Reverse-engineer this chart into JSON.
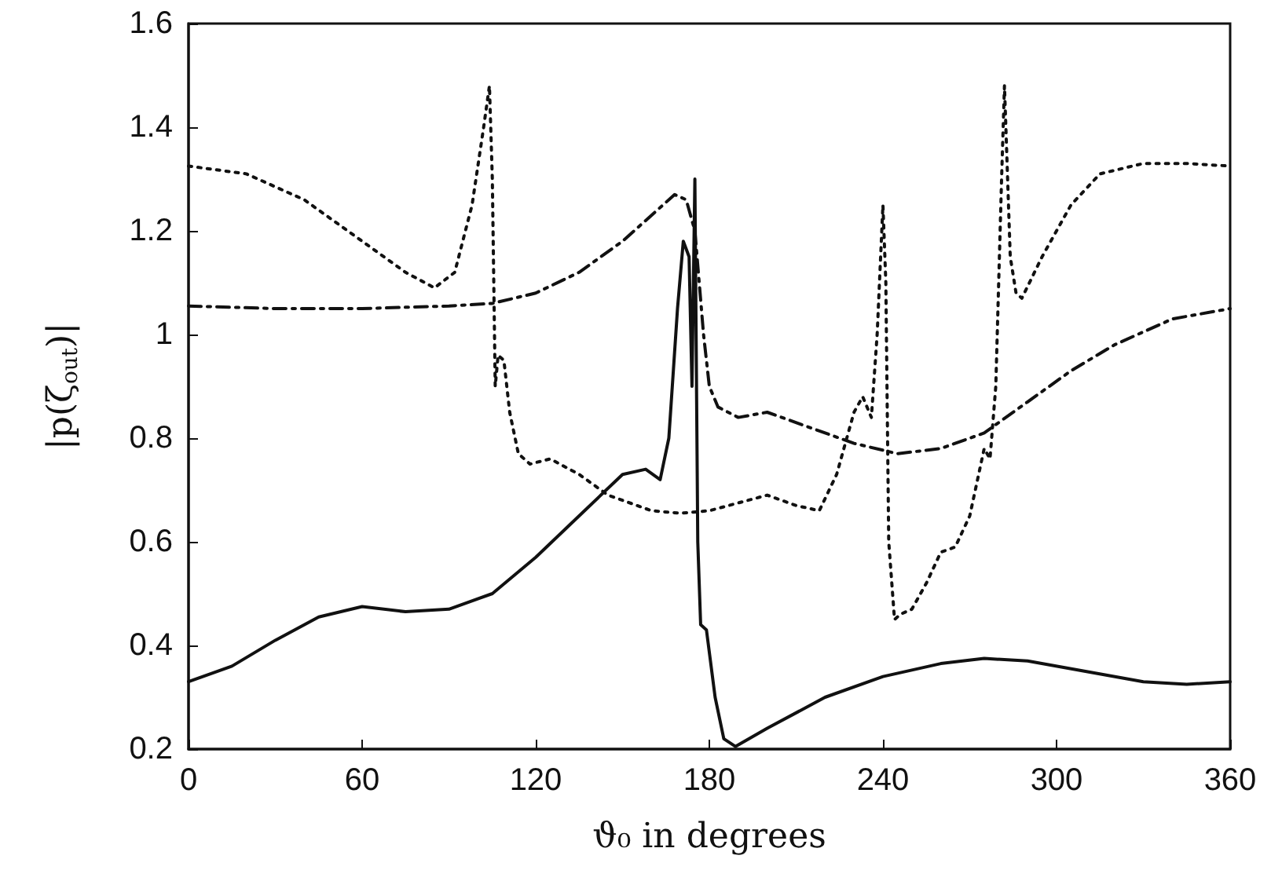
{
  "chart_data": {
    "type": "line",
    "xlabel": "ϑ₀ in degrees",
    "ylabel": "|p(ζ$_{out}$)|",
    "xlim": [
      0,
      360
    ],
    "xticks": [
      0,
      60,
      120,
      180,
      240,
      300,
      360
    ],
    "ylim": [
      0.2,
      1.6
    ],
    "yticks": [
      0.2,
      0.4,
      0.6,
      0.8,
      1,
      1.2,
      1.4,
      1.6
    ],
    "grid": false,
    "marker": "none",
    "series": [
      {
        "color": "#111111",
        "line_style": "solid",
        "x": [
          0,
          15,
          30,
          45,
          60,
          75,
          90,
          105,
          120,
          135,
          150,
          158,
          163,
          166,
          169,
          171,
          173,
          174,
          175,
          176,
          177,
          179,
          182,
          185,
          189,
          200,
          220,
          240,
          260,
          275,
          290,
          310,
          330,
          345,
          360
        ],
        "values": [
          0.33,
          0.36,
          0.41,
          0.455,
          0.475,
          0.465,
          0.47,
          0.5,
          0.57,
          0.65,
          0.73,
          0.74,
          0.72,
          0.8,
          1.05,
          1.18,
          1.15,
          0.9,
          1.3,
          0.6,
          0.44,
          0.43,
          0.3,
          0.22,
          0.205,
          0.24,
          0.3,
          0.34,
          0.365,
          0.375,
          0.37,
          0.35,
          0.33,
          0.325,
          0.33
        ]
      },
      {
        "color": "#111111",
        "line_style": "dotted",
        "x": [
          0,
          20,
          40,
          60,
          75,
          85,
          92,
          98,
          102,
          104,
          105,
          106,
          107,
          109,
          111,
          114,
          118,
          125,
          135,
          145,
          160,
          170,
          180,
          190,
          200,
          210,
          218,
          224,
          230,
          233,
          236,
          238,
          240,
          241,
          242,
          244,
          246,
          250,
          255,
          260,
          265,
          270,
          275,
          277,
          279,
          281,
          282,
          284,
          286,
          288,
          295,
          305,
          315,
          330,
          345,
          360
        ],
        "values": [
          1.325,
          1.31,
          1.26,
          1.18,
          1.12,
          1.09,
          1.12,
          1.25,
          1.4,
          1.48,
          1.3,
          0.9,
          0.96,
          0.95,
          0.85,
          0.77,
          0.75,
          0.76,
          0.73,
          0.69,
          0.66,
          0.655,
          0.66,
          0.675,
          0.69,
          0.67,
          0.66,
          0.73,
          0.85,
          0.88,
          0.84,
          1.0,
          1.25,
          1.1,
          0.6,
          0.45,
          0.46,
          0.47,
          0.52,
          0.58,
          0.59,
          0.65,
          0.78,
          0.76,
          0.9,
          1.3,
          1.48,
          1.15,
          1.08,
          1.07,
          1.15,
          1.25,
          1.31,
          1.33,
          1.33,
          1.325
        ]
      },
      {
        "color": "#111111",
        "line_style": "dashdot",
        "x": [
          0,
          30,
          60,
          90,
          105,
          120,
          135,
          150,
          160,
          168,
          172,
          175,
          178,
          180,
          183,
          190,
          200,
          215,
          230,
          245,
          260,
          275,
          290,
          305,
          320,
          340,
          360
        ],
        "values": [
          1.055,
          1.05,
          1.05,
          1.055,
          1.06,
          1.08,
          1.12,
          1.18,
          1.23,
          1.27,
          1.26,
          1.2,
          1.0,
          0.9,
          0.86,
          0.84,
          0.85,
          0.82,
          0.79,
          0.77,
          0.78,
          0.81,
          0.87,
          0.93,
          0.98,
          1.03,
          1.05
        ]
      }
    ]
  }
}
